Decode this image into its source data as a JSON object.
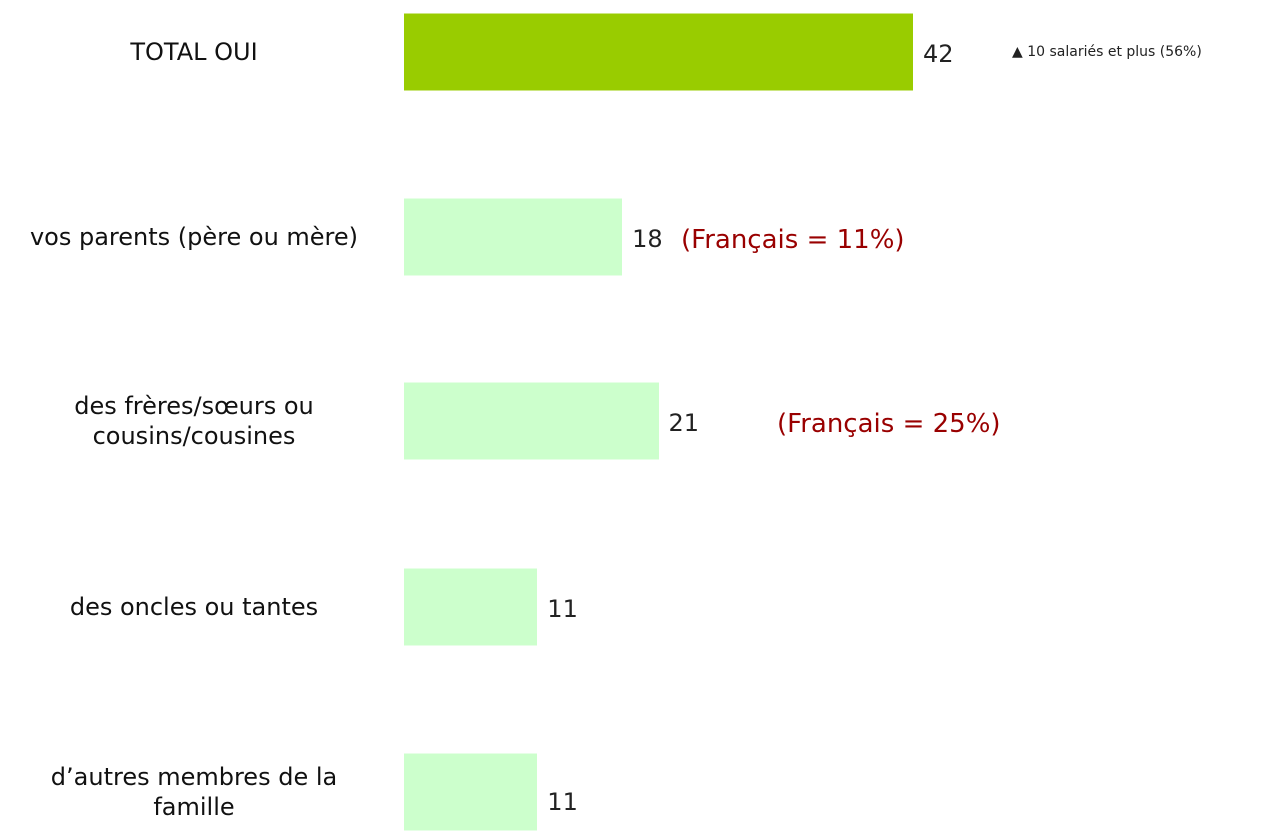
{
  "chart_data": {
    "type": "bar",
    "orientation": "horizontal",
    "categories": [
      "TOTAL OUI",
      "vos parents (père ou mère)",
      "des frères/sœurs ou cousins/cousines",
      "des oncles ou tantes",
      "d’autres membres de la famille"
    ],
    "values": [
      42,
      18,
      21,
      11,
      11
    ],
    "colors": [
      "#99cc00",
      "#ccffcc",
      "#ccffcc",
      "#ccffcc",
      "#ccffcc"
    ],
    "annotations": [
      "▲ 10 salariés et plus (56%)",
      "(Français = 11%)",
      "(Français = 25%)"
    ]
  }
}
